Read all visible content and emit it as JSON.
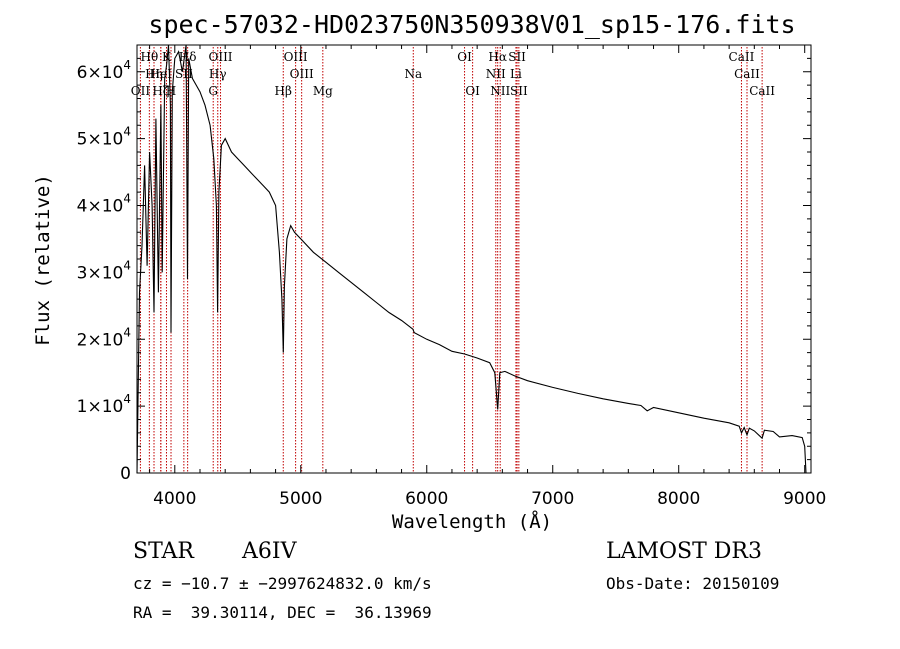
{
  "chart_data": {
    "type": "line",
    "title": "spec-57032-HD023750N350938V01_sp15-176.fits",
    "xlabel": "Wavelength (Å)",
    "ylabel": "Flux (relative)",
    "xlim": [
      3700,
      9050
    ],
    "ylim": [
      0,
      64000
    ],
    "x_ticks": [
      {
        "value": 4000,
        "label": "4000"
      },
      {
        "value": 5000,
        "label": "5000"
      },
      {
        "value": 6000,
        "label": "6000"
      },
      {
        "value": 7000,
        "label": "7000"
      },
      {
        "value": 8000,
        "label": "8000"
      },
      {
        "value": 9000,
        "label": "9000"
      }
    ],
    "y_ticks": [
      {
        "value": 0,
        "mant": "0",
        "exp": ""
      },
      {
        "value": 10000,
        "mant": "1×10",
        "exp": "4"
      },
      {
        "value": 20000,
        "mant": "2×10",
        "exp": "4"
      },
      {
        "value": 30000,
        "mant": "3×10",
        "exp": "4"
      },
      {
        "value": 40000,
        "mant": "4×10",
        "exp": "4"
      },
      {
        "value": 50000,
        "mant": "5×10",
        "exp": "4"
      },
      {
        "value": 60000,
        "mant": "6×10",
        "exp": "4"
      }
    ],
    "series": [
      {
        "name": "spectrum",
        "color": "#000000",
        "x": [
          3700,
          3720,
          3740,
          3760,
          3780,
          3800,
          3820,
          3835,
          3850,
          3870,
          3890,
          3900,
          3920,
          3935,
          3950,
          3965,
          3970,
          3980,
          4000,
          4030,
          4060,
          4090,
          4101,
          4110,
          4140,
          4170,
          4200,
          4240,
          4280,
          4310,
          4330,
          4340,
          4350,
          4370,
          4400,
          4450,
          4500,
          4550,
          4600,
          4650,
          4700,
          4750,
          4800,
          4830,
          4850,
          4861,
          4870,
          4890,
          4920,
          4950,
          5000,
          5100,
          5200,
          5300,
          5400,
          5500,
          5600,
          5700,
          5800,
          5890,
          5900,
          6000,
          6100,
          6200,
          6300,
          6400,
          6500,
          6540,
          6563,
          6580,
          6620,
          6700,
          6800,
          7000,
          7200,
          7400,
          7600,
          7700,
          7750,
          7800,
          8000,
          8200,
          8400,
          8480,
          8498,
          8520,
          8542,
          8560,
          8600,
          8662,
          8680,
          8750,
          8800,
          8900,
          8980,
          9000,
          9010
        ],
        "y": [
          0,
          27000,
          34000,
          46000,
          31000,
          48000,
          40000,
          24000,
          53000,
          27000,
          55000,
          30000,
          59000,
          61000,
          64000,
          55000,
          21000,
          57000,
          62000,
          63000,
          60000,
          64000,
          29000,
          62000,
          59000,
          58000,
          57000,
          55000,
          52000,
          47000,
          40000,
          24000,
          42000,
          49000,
          50000,
          48000,
          47000,
          46000,
          45000,
          44000,
          43000,
          42000,
          40000,
          33000,
          26000,
          18000,
          28000,
          35000,
          37000,
          36000,
          35000,
          33000,
          31500,
          30000,
          28500,
          27000,
          25500,
          24000,
          22800,
          21500,
          21000,
          20000,
          19200,
          18200,
          17800,
          17200,
          16500,
          15000,
          9500,
          15000,
          15200,
          14500,
          13800,
          12800,
          11900,
          11100,
          10400,
          10100,
          9300,
          9800,
          9000,
          8200,
          7500,
          7000,
          6000,
          6800,
          5700,
          6700,
          6300,
          5200,
          6400,
          6200,
          5400,
          5600,
          5300,
          4000,
          0
        ]
      }
    ],
    "annotations": [
      {
        "id": "HTheta",
        "label": "Hθ",
        "x": 3798,
        "row": 1
      },
      {
        "id": "OII",
        "label": "OII",
        "x": 3727,
        "row": 3
      },
      {
        "id": "CaK",
        "label": "K",
        "x": 3934,
        "row": 1
      },
      {
        "id": "HDelta",
        "label": "Hδ",
        "x": 4102,
        "row": 1
      },
      {
        "id": "OIII_4363",
        "label": "OIII",
        "x": 4363,
        "row": 1
      },
      {
        "id": "OIII_4959",
        "label": "OIII",
        "x": 4959,
        "row": 1
      },
      {
        "id": "OI_6300",
        "label": "OI",
        "x": 6300,
        "row": 1
      },
      {
        "id": "HAlpha",
        "label": "Hα",
        "x": 6563,
        "row": 1
      },
      {
        "id": "SII_top",
        "label": "SII",
        "x": 6717,
        "row": 1
      },
      {
        "id": "CaII_8498",
        "label": "CaII",
        "x": 8498,
        "row": 1
      },
      {
        "id": "HEta",
        "label": "Hη",
        "x": 3835,
        "row": 2
      },
      {
        "id": "HeI",
        "label": "HeI",
        "x": 3889,
        "row": 2
      },
      {
        "id": "SII_4072",
        "label": "SII",
        "x": 4072,
        "row": 2
      },
      {
        "id": "HGamma",
        "label": "Hγ",
        "x": 4341,
        "row": 2
      },
      {
        "id": "OIII_5007",
        "label": "OIII",
        "x": 5007,
        "row": 2
      },
      {
        "id": "Na",
        "label": "Na",
        "x": 5893,
        "row": 2
      },
      {
        "id": "NII_6548",
        "label": "NII",
        "x": 6548,
        "row": 2
      },
      {
        "id": "Li",
        "label": "Li",
        "x": 6708,
        "row": 2
      },
      {
        "id": "CaII_8542",
        "label": "CaII",
        "x": 8542,
        "row": 2
      },
      {
        "id": "HZeta",
        "label": "Hζ",
        "x": 3889,
        "row": 3
      },
      {
        "id": "HEpsilon",
        "label": "H",
        "x": 3970,
        "row": 3
      },
      {
        "id": "GBand",
        "label": "G",
        "x": 4305,
        "row": 3
      },
      {
        "id": "HBeta",
        "label": "Hβ",
        "x": 4861,
        "row": 3
      },
      {
        "id": "Mg",
        "label": "Mg",
        "x": 5175,
        "row": 3
      },
      {
        "id": "OI_6364",
        "label": "OI",
        "x": 6364,
        "row": 3
      },
      {
        "id": "NII_6583",
        "label": "NII",
        "x": 6583,
        "row": 3
      },
      {
        "id": "SII_6731",
        "label": "SII",
        "x": 6731,
        "row": 3
      },
      {
        "id": "CaII_8662",
        "label": "CaII",
        "x": 8662,
        "row": 3
      }
    ],
    "line_color": "#c00000"
  },
  "info": {
    "object_class": "STAR",
    "subclass": "A6IV",
    "survey": "LAMOST DR3",
    "cz": "cz = −10.7 ± −2997624832.0 km/s",
    "obs_date": "Obs-Date: 20150109",
    "coords": "RA =  39.30114, DEC =  36.13969"
  }
}
